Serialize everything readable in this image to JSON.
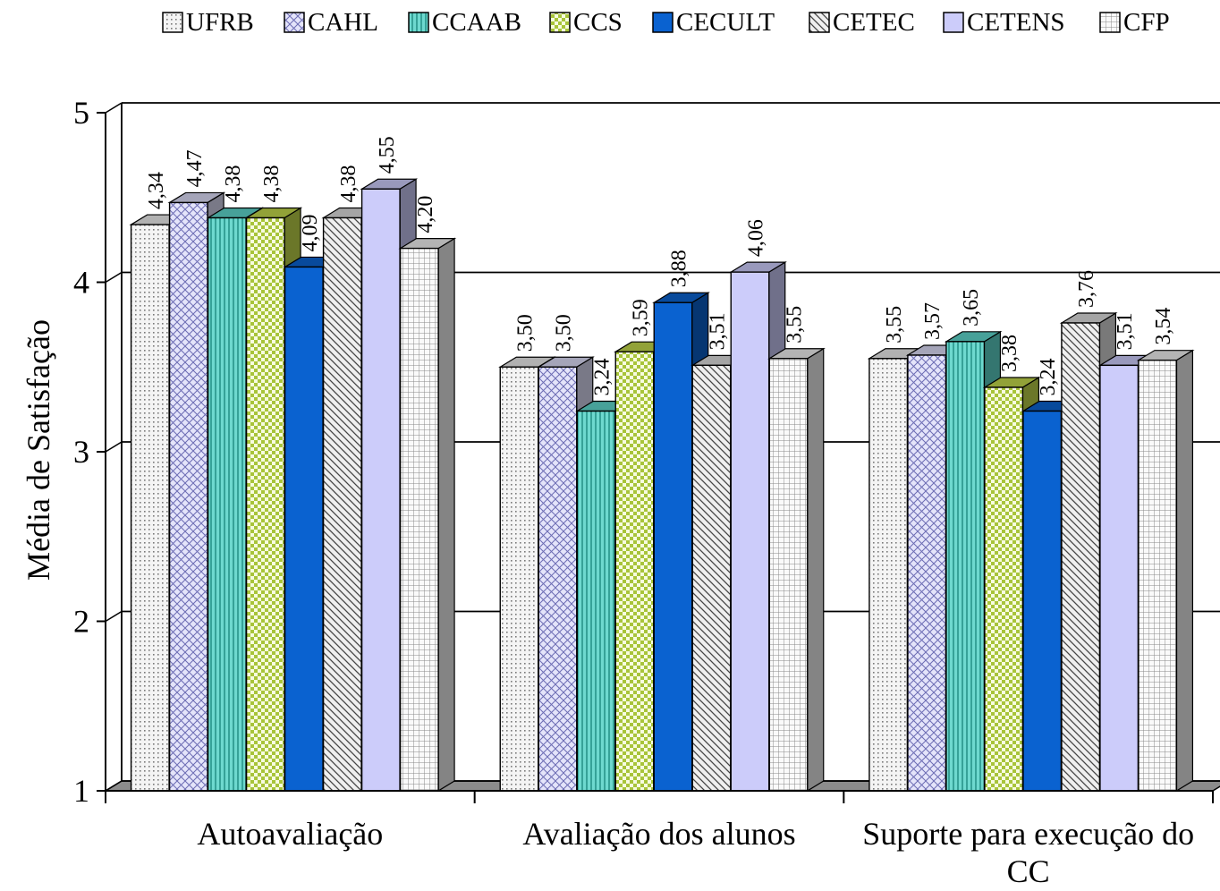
{
  "chart_data": {
    "type": "bar",
    "ylabel": "Média de Satisfação",
    "xlabel": "",
    "ylim": [
      1,
      5
    ],
    "yticks": [
      "1",
      "2",
      "3",
      "4",
      "5"
    ],
    "grid": true,
    "legend_position": "top",
    "categories": [
      "Autoavaliação",
      "Avaliação dos alunos",
      "Suporte para execução do CC"
    ],
    "series": [
      {
        "name": "UFRB",
        "values": [
          4.34,
          3.5,
          3.55
        ],
        "labels": [
          "4,34",
          "3,50",
          "3,55"
        ],
        "color": "#ececec",
        "pattern": "dots"
      },
      {
        "name": "CAHL",
        "values": [
          4.47,
          3.5,
          3.57
        ],
        "labels": [
          "4,47",
          "3,50",
          "3,57"
        ],
        "color": "#dcdcf6",
        "pattern": "crosshatch"
      },
      {
        "name": "CCAAB",
        "values": [
          4.38,
          3.24,
          3.65
        ],
        "labels": [
          "4,38",
          "3,24",
          "3,65"
        ],
        "color": "#5fd6cc",
        "pattern": "vlines"
      },
      {
        "name": "CCS",
        "values": [
          4.38,
          3.59,
          3.38
        ],
        "labels": [
          "4,38",
          "3,59",
          "3,38"
        ],
        "color": "#c2d84a",
        "pattern": "checker"
      },
      {
        "name": "CECULT",
        "values": [
          4.09,
          3.88,
          3.24
        ],
        "labels": [
          "4,09",
          "3,88",
          "3,24"
        ],
        "color": "#0a62d0",
        "pattern": "solid"
      },
      {
        "name": "CETEC",
        "values": [
          4.38,
          3.51,
          3.76
        ],
        "labels": [
          "4,38",
          "3,51",
          "3,76"
        ],
        "color": "#dcdcdc",
        "pattern": "diag"
      },
      {
        "name": "CETENS",
        "values": [
          4.55,
          4.06,
          3.51
        ],
        "labels": [
          "4,55",
          "4,06",
          "3,51"
        ],
        "color": "#ccccfa",
        "pattern": "solid"
      },
      {
        "name": "CFP",
        "values": [
          4.2,
          3.55,
          3.54
        ],
        "labels": [
          "4,20",
          "3,55",
          "3,54"
        ],
        "color": "#f0f0f0",
        "pattern": "grid"
      }
    ]
  }
}
